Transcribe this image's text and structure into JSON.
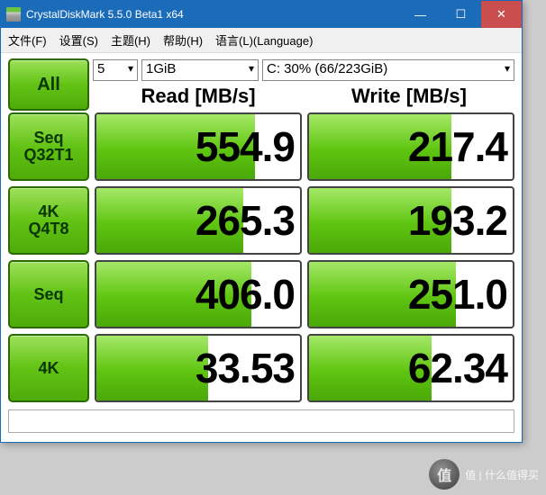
{
  "window": {
    "title": "CrystalDiskMark 5.5.0 Beta1 x64"
  },
  "menu": {
    "file": "文件(F)",
    "settings": "设置(S)",
    "theme": "主题(H)",
    "help": "帮助(H)",
    "language": "语言(L)(Language)"
  },
  "controls": {
    "all_label": "All",
    "count": "5",
    "size": "1GiB",
    "drive": "C: 30% (66/223GiB)"
  },
  "headers": {
    "read": "Read [MB/s]",
    "write": "Write [MB/s]"
  },
  "rows": [
    {
      "label_l1": "Seq",
      "label_l2": "Q32T1",
      "read": "554.9",
      "read_fill_pct": 78,
      "write": "217.4",
      "write_fill_pct": 70
    },
    {
      "label_l1": "4K",
      "label_l2": "Q4T8",
      "read": "265.3",
      "read_fill_pct": 72,
      "write": "193.2",
      "write_fill_pct": 70
    },
    {
      "label_l1": "Seq",
      "label_l2": "",
      "read": "406.0",
      "read_fill_pct": 76,
      "write": "251.0",
      "write_fill_pct": 72
    },
    {
      "label_l1": "4K",
      "label_l2": "",
      "read": "33.53",
      "read_fill_pct": 55,
      "write": "62.34",
      "write_fill_pct": 60
    }
  ],
  "colors": {
    "titlebar": "#1a6bb8",
    "close_btn": "#c94f4f",
    "green_grad_top": "#9de05a",
    "green_grad_mid": "#62c314",
    "green_grad_bot": "#4fab09",
    "green_border": "#2a6b00",
    "cell_border": "#444444",
    "background": "#ffffff"
  },
  "watermark": {
    "text": "值 | 什么值得买"
  }
}
